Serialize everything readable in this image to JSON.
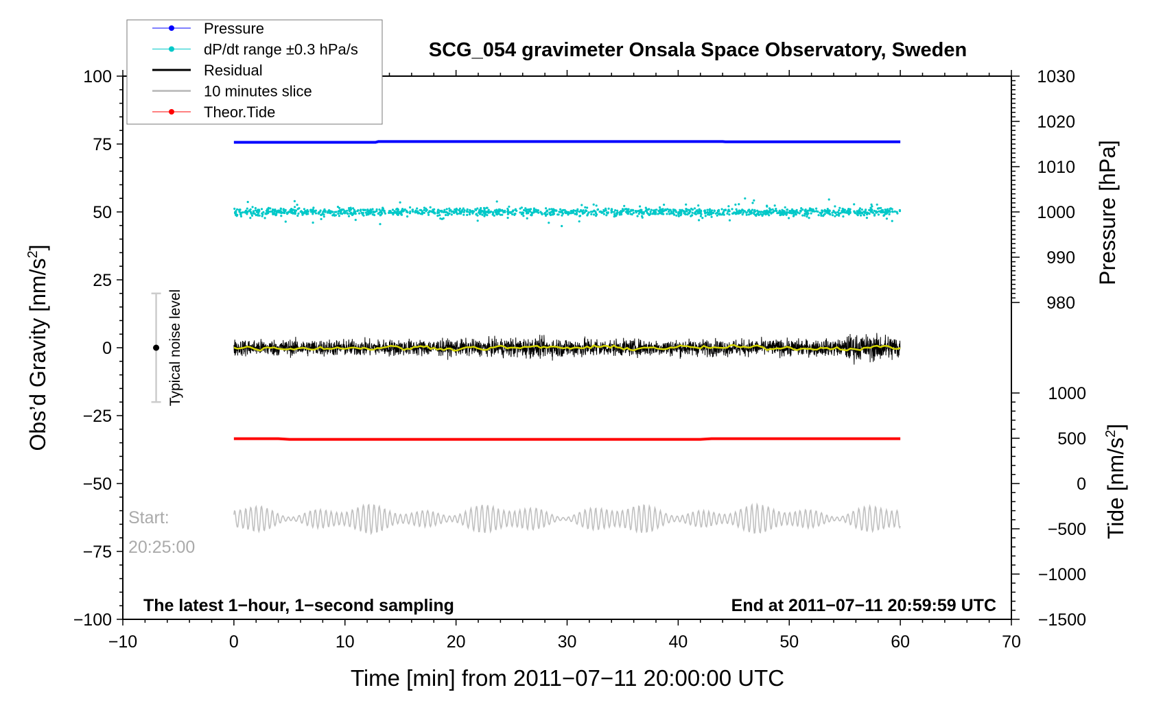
{
  "chart_data": {
    "type": "line",
    "title": "SCG_054 gravimeter Onsala Space Observatory, Sweden",
    "xlabel": "Time [min] from 2011−07−11 20:00:00 UTC",
    "ylabel": "Obs’d Gravity [nm/s²]",
    "ylabel_main": "Obs’d Gravity [nm/s",
    "ylabel_sup": "2",
    "ylabel_end": "]",
    "y2label": "Pressure [hPa]",
    "y3label_main": "Tide [nm/s",
    "y3label_sup": "2",
    "y3label_end": "]",
    "xlim": [
      -10,
      70
    ],
    "ylim": [
      -100,
      100
    ],
    "y2lim": [
      980,
      1030
    ],
    "y3lim": [
      -1500,
      1000
    ],
    "xticks": [
      "−10",
      "0",
      "10",
      "20",
      "30",
      "40",
      "50",
      "60",
      "70"
    ],
    "xtick_values": [
      -10,
      0,
      10,
      20,
      30,
      40,
      50,
      60,
      70
    ],
    "yticks": [
      "100",
      "75",
      "50",
      "25",
      "0",
      "−25",
      "−50",
      "−75",
      "−100"
    ],
    "ytick_values": [
      100,
      75,
      50,
      25,
      0,
      -25,
      -50,
      -75,
      -100
    ],
    "y2ticks": [
      "1030",
      "1020",
      "1010",
      "1000",
      "990",
      "980"
    ],
    "y2tick_values": [
      1030,
      1020,
      1010,
      1000,
      990,
      980
    ],
    "y3ticks": [
      "1000",
      "500",
      "0",
      "−500",
      "−1000",
      "−1500"
    ],
    "y3tick_values": [
      1000,
      500,
      0,
      -500,
      -1000,
      -1500
    ],
    "legend_position": "top-left",
    "legend": [
      {
        "label": "Pressure",
        "color": "#0000ff",
        "marker": true
      },
      {
        "label": "dP/dt range ±0.3 hPa/s",
        "color": "#00c8c8",
        "marker": true
      },
      {
        "label": "Residual",
        "color": "#000000",
        "marker": false
      },
      {
        "label": "10 minutes slice",
        "color": "#c0c0c0",
        "marker": false
      },
      {
        "label": "Theor.Tide",
        "color": "#ff0000",
        "marker": true
      }
    ],
    "series": [
      {
        "name": "Pressure",
        "axis": "pressure",
        "x_range": [
          0,
          60
        ],
        "level": 1015.5,
        "color": "#0000ff"
      },
      {
        "name": "dP/dt range",
        "axis": "gravity",
        "x_range": [
          0,
          60
        ],
        "level": 50,
        "spread": 3,
        "color": "#00c8c8"
      },
      {
        "name": "Residual",
        "axis": "gravity",
        "x_range": [
          0,
          60
        ],
        "level": 0,
        "amplitude": 5,
        "color": "#000000"
      },
      {
        "name": "Residual smoothed",
        "axis": "gravity",
        "x_range": [
          0,
          60
        ],
        "level": 0,
        "color": "#d4d400"
      },
      {
        "name": "Theor.Tide",
        "axis": "gravity",
        "x_range": [
          0,
          60
        ],
        "level": -33.5,
        "color": "#ff0000"
      },
      {
        "name": "10 minutes slice",
        "axis": "gravity",
        "x_range": [
          0,
          60
        ],
        "level": -63,
        "amplitude": 4,
        "color": "#c0c0c0"
      }
    ],
    "noise_label": "Typical noise level",
    "noise_range": [
      -20,
      20
    ],
    "slice_start_label": "Start:",
    "slice_start_time": "20:25:00",
    "footer_left": "The latest 1−hour, 1−second sampling",
    "footer_right": "End at 2011−07−11 20:59:59 UTC"
  }
}
